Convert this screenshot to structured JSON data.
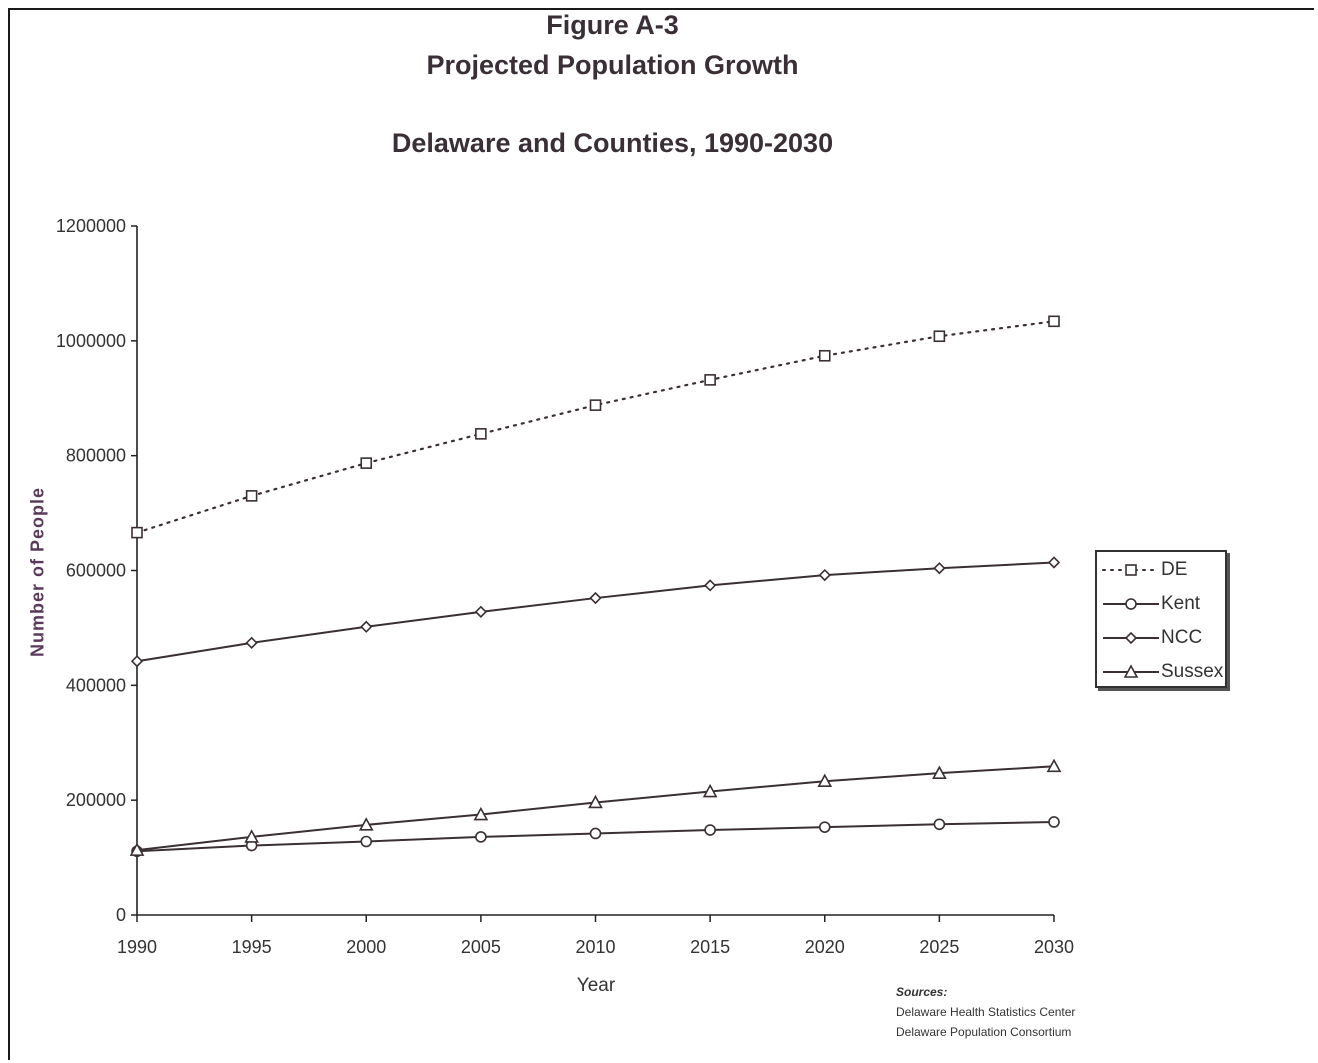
{
  "figure": {
    "label": "Figure A-3",
    "title": "Projected Population Growth",
    "subtitle": "Delaware and Counties, 1990-2030"
  },
  "sources": {
    "title": "Sources:",
    "lines": [
      "Delaware Health Statistics Center",
      "Delaware Population Consortium"
    ]
  },
  "colors": {
    "line": "#3a2f33",
    "text": "#333333"
  },
  "chart_data": {
    "type": "line",
    "title": "Projected Population Growth",
    "subtitle": "Delaware and Counties, 1990-2030",
    "xlabel": "Year",
    "ylabel": "Number of People",
    "x": [
      1990,
      1995,
      2000,
      2005,
      2010,
      2015,
      2020,
      2025,
      2030
    ],
    "ylim": [
      0,
      1200000
    ],
    "yticks": [
      0,
      200000,
      400000,
      600000,
      800000,
      1000000,
      1200000
    ],
    "legend_position": "right",
    "series": [
      {
        "name": "DE",
        "marker": "square",
        "style": "dotted",
        "values": [
          666000,
          730000,
          787000,
          838000,
          888000,
          932000,
          974000,
          1008000,
          1034000
        ]
      },
      {
        "name": "Kent",
        "marker": "circle",
        "style": "solid",
        "values": [
          111000,
          121000,
          128000,
          136000,
          142000,
          148000,
          153000,
          158000,
          162000
        ]
      },
      {
        "name": "NCC",
        "marker": "diamond",
        "style": "solid",
        "values": [
          442000,
          474000,
          502000,
          528000,
          552000,
          574000,
          592000,
          604000,
          614000
        ]
      },
      {
        "name": "Sussex",
        "marker": "triangle",
        "style": "solid",
        "values": [
          113000,
          136000,
          157000,
          175000,
          196000,
          215000,
          233000,
          247000,
          259000
        ]
      }
    ]
  }
}
